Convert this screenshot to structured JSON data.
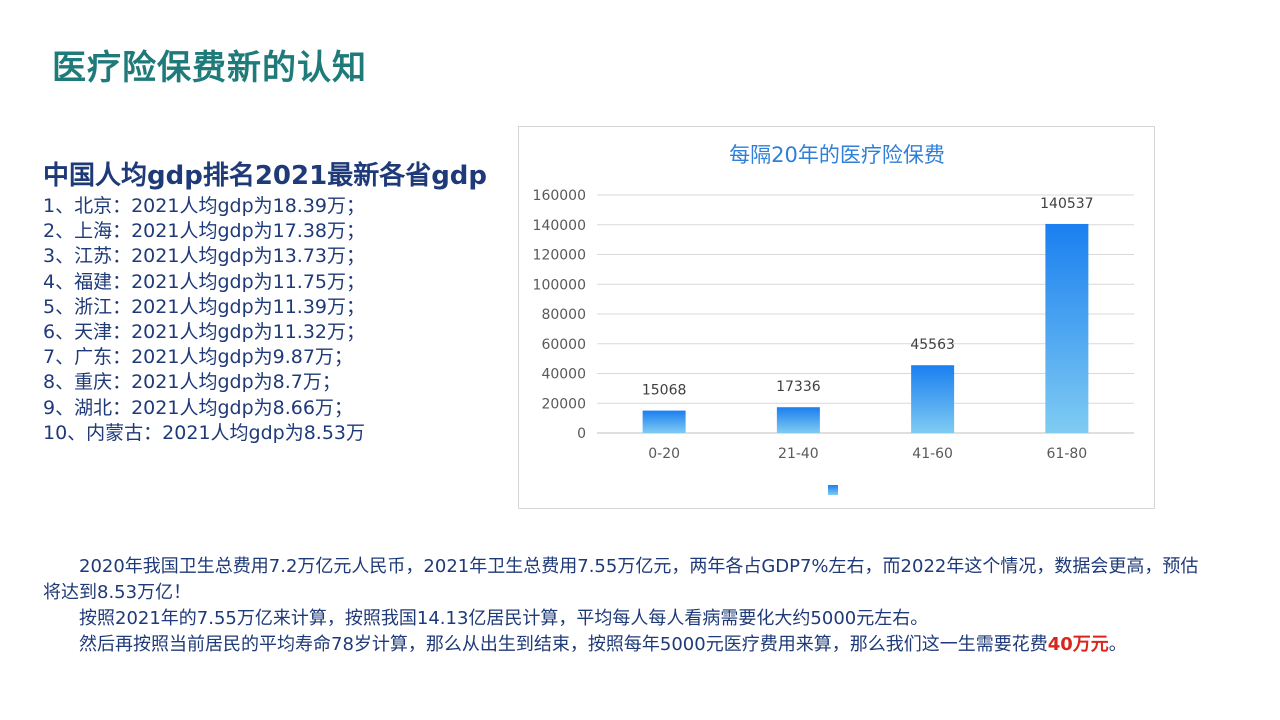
{
  "page": {
    "title": "医疗险保费新的认知"
  },
  "left": {
    "heading": "中国人均gdp排名2021最新各省gdp",
    "items": [
      "1、北京：2021人均gdp为18.39万；",
      "2、上海：2021人均gdp为17.38万；",
      "3、江苏：2021人均gdp为13.73万；",
      "4、福建：2021人均gdp为11.75万；",
      "5、浙江：2021人均gdp为11.39万；",
      "6、天津：2021人均gdp为11.32万；",
      "7、广东：2021人均gdp为9.87万；",
      "8、重庆：2021人均gdp为8.7万；",
      "9、湖北：2021人均gdp为8.66万；",
      "10、内蒙古：2021人均gdp为8.53万"
    ]
  },
  "chart_data": {
    "type": "bar",
    "title": "每隔20年的医疗险保费",
    "categories": [
      "0-20",
      "21-40",
      "41-60",
      "61-80"
    ],
    "values": [
      15068,
      17336,
      45563,
      140537
    ],
    "ylim": [
      0,
      160000
    ],
    "yticks": [
      0,
      20000,
      40000,
      60000,
      80000,
      100000,
      120000,
      140000,
      160000
    ],
    "grid": true,
    "legend": "bottom",
    "colors": {
      "bar_top": "#1a7ff0",
      "bar_bottom": "#7fcbf2",
      "title": "#2f7fd8",
      "axis_text": "#595959",
      "grid": "#d9d9d9"
    }
  },
  "paragraphs": {
    "p1": "2020年我国卫生总费用7.2万亿元人民币，2021年卫生总费用7.55万亿元，两年各占GDP7%左右，而2022年这个情况，数据会更高，预估将达到8.53万亿！",
    "p2": "按照2021年的7.55万亿来计算，按照我国14.13亿居民计算，平均每人每人看病需要化大约5000元左右。",
    "p3_prefix": "然后再按照当前居民的平均寿命78岁计算，那么从出生到结束，按照每年5000元医疗费用来算，那么我们这一生需要花费",
    "p3_highlight": "40万元",
    "p3_suffix": "。"
  }
}
